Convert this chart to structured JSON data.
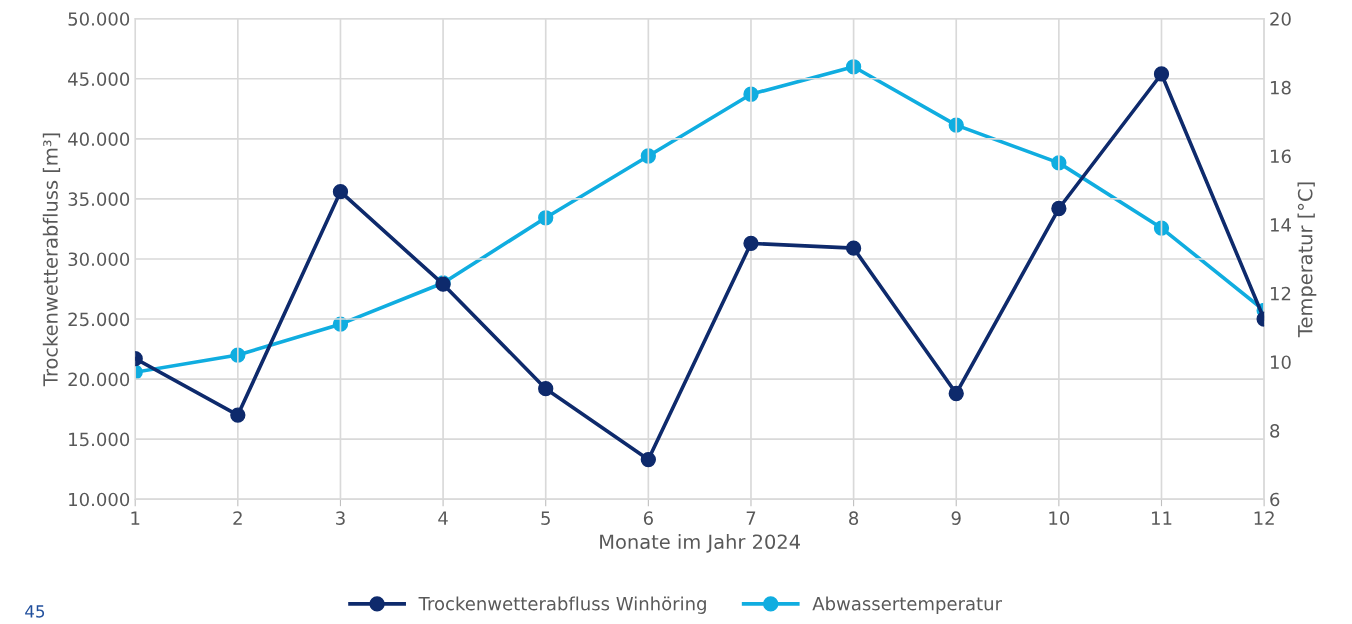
{
  "chart_data": {
    "type": "line",
    "xlabel": "Monate im Jahr 2024",
    "ylabel": "Trockenwetterabfluss [m³]",
    "y2label": "Temperatur [°C]",
    "x": [
      1,
      2,
      3,
      4,
      5,
      6,
      7,
      8,
      9,
      10,
      11,
      12
    ],
    "xlim": [
      1,
      12
    ],
    "xticks": [
      1,
      2,
      3,
      4,
      5,
      6,
      7,
      8,
      9,
      10,
      11,
      12
    ],
    "ylim": [
      10000,
      50000
    ],
    "yticks": [
      {
        "value": 10000,
        "label": "10.000"
      },
      {
        "value": 15000,
        "label": "15.000"
      },
      {
        "value": 20000,
        "label": "20.000"
      },
      {
        "value": 25000,
        "label": "25.000"
      },
      {
        "value": 30000,
        "label": "30.000"
      },
      {
        "value": 35000,
        "label": "35.000"
      },
      {
        "value": 40000,
        "label": "40.000"
      },
      {
        "value": 45000,
        "label": "45.000"
      },
      {
        "value": 50000,
        "label": "50.000"
      }
    ],
    "y2lim": [
      6,
      20
    ],
    "y2ticks": [
      6,
      8,
      10,
      12,
      14,
      16,
      18,
      20
    ],
    "series": [
      {
        "name": "Trockenwetterabfluss Winhöring",
        "color": "#0e2a6c",
        "values": [
          21700,
          17000,
          35600,
          27900,
          19200,
          13300,
          31300,
          30900,
          18800,
          34200,
          45400,
          25000
        ]
      },
      {
        "name": "Abwassertemperatur",
        "color": "#10ade0",
        "axis": "y2",
        "values": [
          9.7,
          10.2,
          11.1,
          12.3,
          14.2,
          16.0,
          17.8,
          18.6,
          16.9,
          15.8,
          13.9,
          11.5
        ]
      }
    ],
    "marker": "circle",
    "line_style": "solid",
    "grid": true,
    "legend": "bottom",
    "annotations": [
      "45"
    ]
  }
}
